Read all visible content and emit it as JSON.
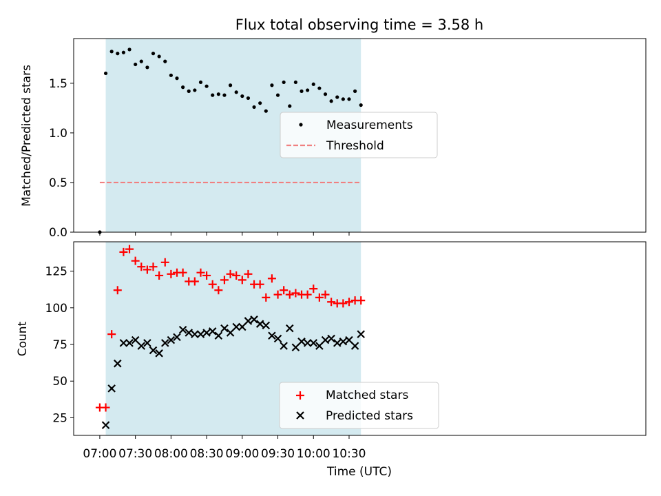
{
  "chart_data": {
    "type": "scatter",
    "title": "Flux total observing time = 3.58 h",
    "xlabel": "Time (UTC)",
    "x_ticks": [
      "07:00",
      "07:30",
      "08:00",
      "08:30",
      "09:00",
      "09:30",
      "10:00",
      "10:30"
    ],
    "x_range_minutes": [
      -22,
      460
    ],
    "x_start_clock": "07:00",
    "shaded_interval": {
      "from": "07:05",
      "to": "10:40",
      "color": "#d4eaf0"
    },
    "top": {
      "ylabel": "Matched/Predicted stars",
      "ylim": [
        0,
        1.95
      ],
      "yticks": [
        0.0,
        0.5,
        1.0,
        1.5
      ],
      "threshold": 0.5,
      "threshold_range": [
        "07:00",
        "10:40"
      ],
      "threshold_color": "#f08080",
      "x": [
        "07:00",
        "07:05",
        "07:10",
        "07:15",
        "07:20",
        "07:25",
        "07:30",
        "07:35",
        "07:40",
        "07:45",
        "07:50",
        "07:55",
        "08:00",
        "08:05",
        "08:10",
        "08:15",
        "08:20",
        "08:25",
        "08:30",
        "08:35",
        "08:40",
        "08:45",
        "08:50",
        "08:55",
        "09:00",
        "09:05",
        "09:10",
        "09:15",
        "09:20",
        "09:25",
        "09:30",
        "09:35",
        "09:40",
        "09:45",
        "09:50",
        "09:55",
        "10:00",
        "10:05",
        "10:10",
        "10:15",
        "10:20",
        "10:25",
        "10:30",
        "10:35",
        "10:40"
      ],
      "series": [
        {
          "name": "Measurements",
          "marker": "dot",
          "color": "#000000",
          "values": [
            0.0,
            1.6,
            1.82,
            1.8,
            1.81,
            1.84,
            1.69,
            1.72,
            1.66,
            1.8,
            1.77,
            1.72,
            1.58,
            1.55,
            1.46,
            1.42,
            1.43,
            1.51,
            1.47,
            1.38,
            1.39,
            1.38,
            1.48,
            1.41,
            1.37,
            1.35,
            1.26,
            1.3,
            1.22,
            1.48,
            1.38,
            1.51,
            1.27,
            1.51,
            1.42,
            1.43,
            1.49,
            1.45,
            1.39,
            1.32,
            1.36,
            1.34,
            1.34,
            1.42,
            1.28
          ]
        },
        {
          "name": "Threshold",
          "marker": "dashed-line",
          "color": "#f08080"
        }
      ],
      "legend": {
        "position": "center"
      }
    },
    "bottom": {
      "ylabel": "Count",
      "ylim": [
        13,
        145
      ],
      "yticks": [
        25,
        50,
        75,
        100,
        125
      ],
      "x": [
        "07:00",
        "07:05",
        "07:10",
        "07:15",
        "07:20",
        "07:25",
        "07:30",
        "07:35",
        "07:40",
        "07:45",
        "07:50",
        "07:55",
        "08:00",
        "08:05",
        "08:10",
        "08:15",
        "08:20",
        "08:25",
        "08:30",
        "08:35",
        "08:40",
        "08:45",
        "08:50",
        "08:55",
        "09:00",
        "09:05",
        "09:10",
        "09:15",
        "09:20",
        "09:25",
        "09:30",
        "09:35",
        "09:40",
        "09:45",
        "09:50",
        "09:55",
        "10:00",
        "10:05",
        "10:10",
        "10:15",
        "10:20",
        "10:25",
        "10:30",
        "10:35",
        "10:40"
      ],
      "series": [
        {
          "name": "Matched stars",
          "marker": "plus",
          "color": "#ff0000",
          "values": [
            32,
            32,
            82,
            112,
            138,
            140,
            132,
            128,
            126,
            128,
            122,
            131,
            123,
            124,
            124,
            118,
            118,
            124,
            122,
            116,
            112,
            119,
            123,
            122,
            119,
            123,
            116,
            116,
            107,
            120,
            109,
            112,
            109,
            110,
            109,
            109,
            113,
            107,
            109,
            104,
            103,
            103,
            104,
            105,
            105
          ]
        },
        {
          "name": "Predicted stars",
          "marker": "x",
          "color": "#000000",
          "x": [
            "07:05",
            "07:10",
            "07:15",
            "07:20",
            "07:25",
            "07:30",
            "07:35",
            "07:40",
            "07:45",
            "07:50",
            "07:55",
            "08:00",
            "08:05",
            "08:10",
            "08:15",
            "08:20",
            "08:25",
            "08:30",
            "08:35",
            "08:40",
            "08:45",
            "08:50",
            "08:55",
            "09:00",
            "09:05",
            "09:10",
            "09:15",
            "09:20",
            "09:25",
            "09:30",
            "09:35",
            "09:40",
            "09:45",
            "09:50",
            "09:55",
            "10:00",
            "10:05",
            "10:10",
            "10:15",
            "10:20",
            "10:25",
            "10:30",
            "10:35",
            "10:40"
          ],
          "values": [
            20,
            45,
            62,
            76,
            76,
            78,
            74,
            76,
            71,
            69,
            76,
            78,
            80,
            85,
            83,
            82,
            82,
            83,
            84,
            81,
            86,
            83,
            87,
            87,
            91,
            92,
            89,
            88,
            81,
            79,
            74,
            86,
            73,
            77,
            76,
            76,
            74,
            78,
            79,
            76,
            77,
            78,
            74,
            82
          ]
        }
      ],
      "legend": {
        "position": "lower center"
      }
    }
  }
}
